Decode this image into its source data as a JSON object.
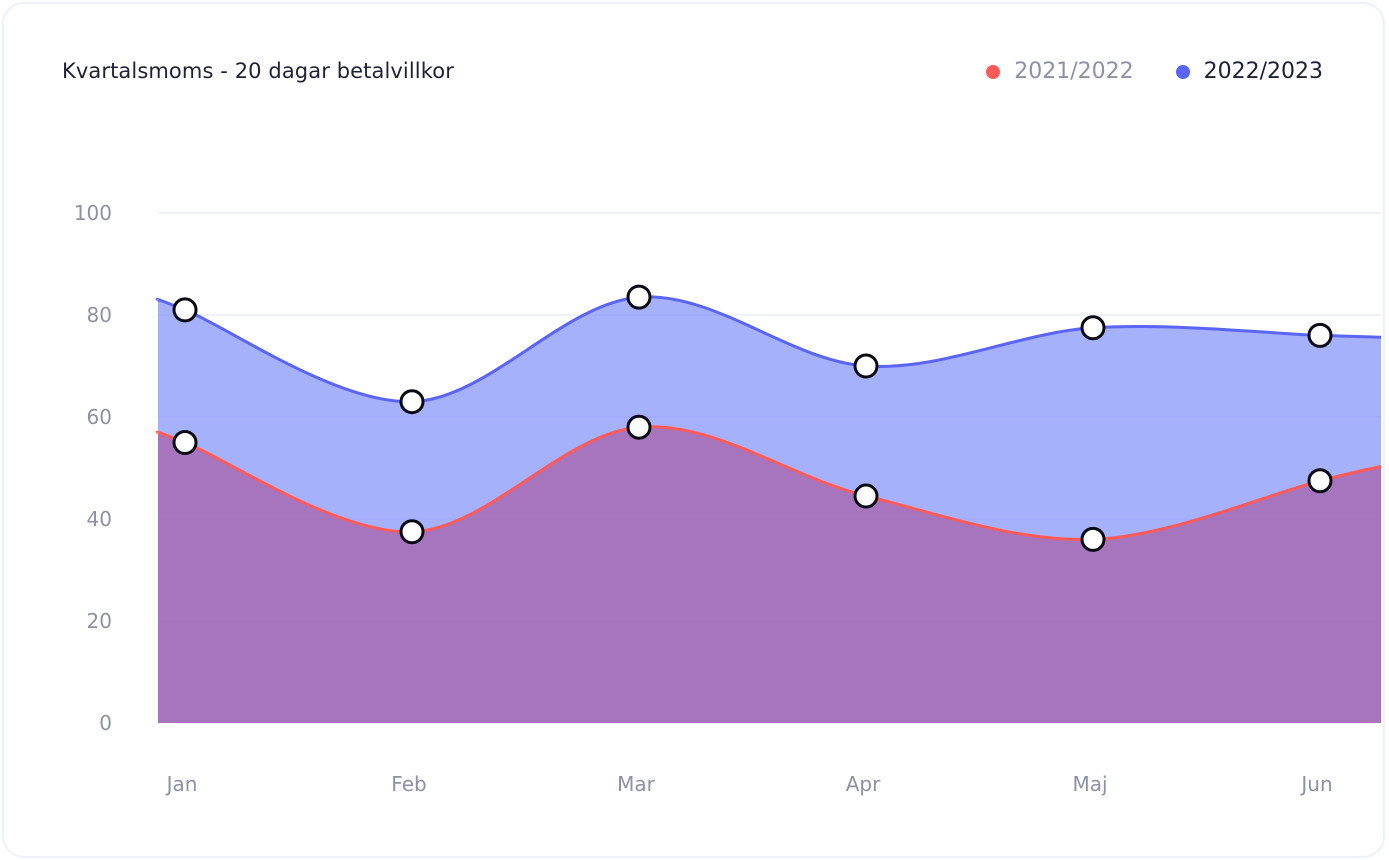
{
  "chart_data": {
    "type": "area",
    "title": "Kvartalsmoms - 20 dagar betalvillkor",
    "xlabel": "",
    "ylabel": "",
    "categories": [
      "Jan",
      "Feb",
      "Mar",
      "Apr",
      "Maj",
      "Jun"
    ],
    "ylim": [
      0,
      100
    ],
    "yticks": [
      "0",
      "20",
      "40",
      "60",
      "80",
      "100"
    ],
    "grid": true,
    "legend_position": "top-right",
    "series": [
      {
        "name": "2021/2022",
        "color": "#ff5a5a",
        "values": [
          55,
          37.5,
          58,
          44.5,
          36,
          47.5
        ],
        "legend_active": false
      },
      {
        "name": "2022/2023",
        "color": "#5a64f5",
        "values": [
          81,
          63,
          83.5,
          70,
          77.5,
          76
        ],
        "legend_active": true
      }
    ]
  }
}
